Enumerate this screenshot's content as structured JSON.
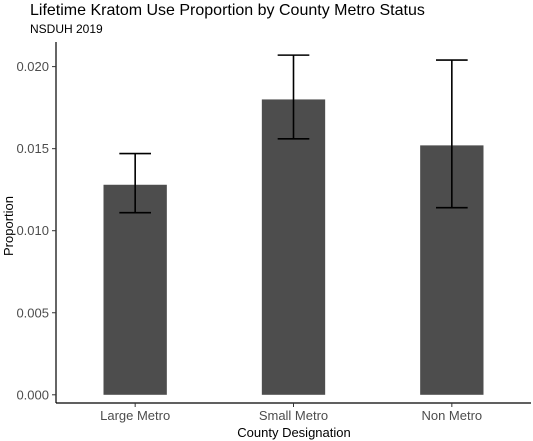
{
  "chart_data": {
    "type": "bar",
    "title": "Lifetime Kratom Use Proportion by County Metro Status",
    "subtitle": "NSDUH 2019",
    "xlabel": "County Designation",
    "ylabel": "Proportion",
    "categories": [
      "Large Metro",
      "Small Metro",
      "Non Metro"
    ],
    "values": [
      0.0128,
      0.018,
      0.0152
    ],
    "error_low": [
      0.0111,
      0.0156,
      0.0114
    ],
    "error_high": [
      0.0147,
      0.0207,
      0.0204
    ],
    "ylim": [
      -0.0005,
      0.0215
    ],
    "yticks": [
      0.0,
      0.005,
      0.01,
      0.015,
      0.02
    ],
    "ytick_labels": [
      "0.000",
      "0.005",
      "0.010",
      "0.015",
      "0.020"
    ],
    "grid": false,
    "colors": {
      "bar": "#4d4d4d",
      "errorbar": "#000000",
      "axis": "#000000"
    }
  }
}
